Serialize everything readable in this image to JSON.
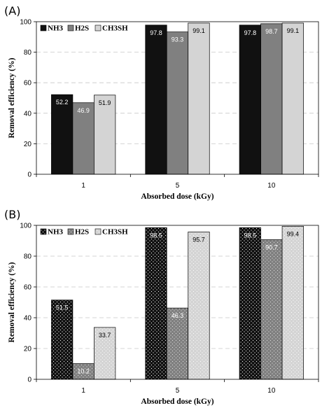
{
  "chart_data": [
    {
      "type": "bar",
      "panel_label": "(A)",
      "categories": [
        "1",
        "5",
        "10"
      ],
      "series": [
        {
          "name": "NH3",
          "values": [
            52.2,
            97.8,
            97.8
          ],
          "color": "#111111",
          "pattern": "solid",
          "label_color": "#ffffff"
        },
        {
          "name": "H2S",
          "values": [
            46.9,
            93.3,
            98.7
          ],
          "color": "#808080",
          "pattern": "solid",
          "label_color": "#ffffff"
        },
        {
          "name": "CH3SH",
          "values": [
            51.9,
            99.1,
            99.1
          ],
          "color": "#d4d4d4",
          "pattern": "solid",
          "label_color": "#000000"
        }
      ],
      "xlabel": "Absorbed dose (kGy)",
      "ylabel": "Removal efficiency (%)",
      "ylim": [
        0,
        100
      ],
      "yticks": [
        0,
        20,
        40,
        60,
        80,
        100
      ],
      "grid": "horizontal dashed",
      "legend": "top-left"
    },
    {
      "type": "bar",
      "panel_label": "(B)",
      "categories": [
        "1",
        "5",
        "10"
      ],
      "series": [
        {
          "name": "NH3",
          "values": [
            51.5,
            98.5,
            98.5
          ],
          "color": "#111111",
          "pattern": "dotted",
          "label_color": "#ffffff"
        },
        {
          "name": "H2S",
          "values": [
            10.2,
            46.3,
            90.7
          ],
          "color": "#808080",
          "pattern": "dotted",
          "label_color": "#ffffff"
        },
        {
          "name": "CH3SH",
          "values": [
            33.7,
            95.7,
            99.4
          ],
          "color": "#d4d4d4",
          "pattern": "dotted",
          "label_color": "#000000"
        }
      ],
      "xlabel": "Absorbed dose (kGy)",
      "ylabel": "Removal efficiency (%)",
      "ylim": [
        0,
        100
      ],
      "yticks": [
        0,
        20,
        40,
        60,
        80,
        100
      ],
      "grid": "horizontal dashed",
      "legend": "top-left"
    }
  ]
}
